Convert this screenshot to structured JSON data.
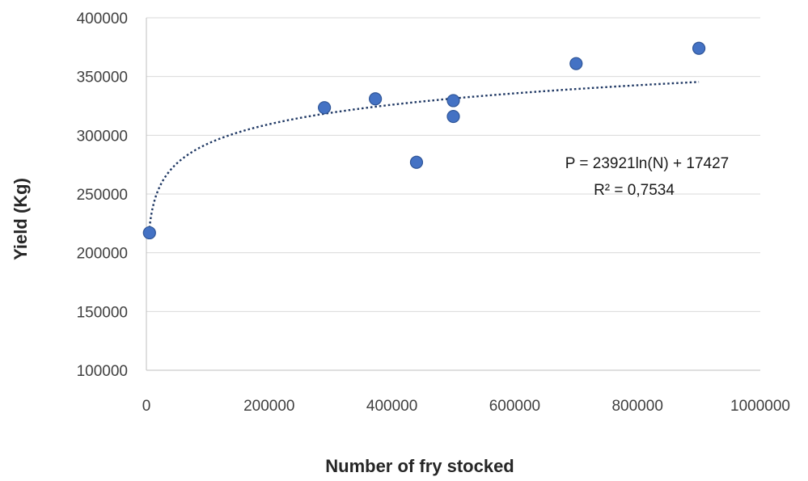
{
  "chart_data": {
    "type": "scatter",
    "title": "",
    "xlabel": "Number of fry stocked",
    "ylabel": "Yield (Kg)",
    "xlim": [
      0,
      1000000
    ],
    "ylim": [
      100000,
      400000
    ],
    "x_ticks": [
      0,
      200000,
      400000,
      600000,
      800000,
      1000000
    ],
    "x_tick_labels": [
      "0",
      "200000",
      "400000",
      "600000",
      "800000",
      "1000000"
    ],
    "y_ticks": [
      100000,
      150000,
      200000,
      250000,
      300000,
      350000,
      400000
    ],
    "y_tick_labels": [
      "100000",
      "150000",
      "200000",
      "250000",
      "300000",
      "350000",
      "400000"
    ],
    "grid": "horizontal",
    "marker_color": "#4472C4",
    "marker_edge_color": "#2F5597",
    "trendline_color": "#1F3864",
    "points": [
      {
        "x": 5000,
        "y": 217000
      },
      {
        "x": 290000,
        "y": 323500
      },
      {
        "x": 373000,
        "y": 331000
      },
      {
        "x": 440000,
        "y": 277000
      },
      {
        "x": 500000,
        "y": 329500
      },
      {
        "x": 500000,
        "y": 316000
      },
      {
        "x": 700000,
        "y": 361000
      },
      {
        "x": 900000,
        "y": 374000
      }
    ],
    "trendline": {
      "type": "logarithmic",
      "slope": 23921,
      "intercept": 17427,
      "x_range": [
        5000,
        900000
      ],
      "equation": "P = 23921ln(N)  + 17427",
      "r_squared": "R² = 0,7534"
    }
  }
}
